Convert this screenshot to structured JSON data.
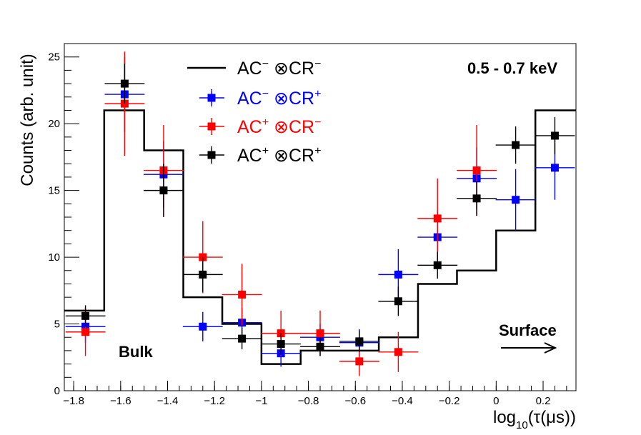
{
  "chart_data": {
    "type": "scatter",
    "title": "0.5 - 0.7 keV",
    "xlabel": "log",
    "xlabel_sub": "10",
    "xlabel_arg": "(τ(μs))",
    "ylabel": "Counts (arb. unit)",
    "xlim": [
      -1.84,
      0.34
    ],
    "ylim": [
      0,
      26
    ],
    "x_ticks": [
      -1.8,
      -1.6,
      -1.4,
      -1.2,
      -1,
      -0.8,
      -0.6,
      -0.4,
      -0.2,
      0,
      0.2
    ],
    "x_tick_labels": [
      "−1.8",
      "−1.6",
      "−1.4",
      "−1.2",
      "−1",
      "−0.8",
      "−0.6",
      "−0.4",
      "−0.2",
      "0",
      "0.2"
    ],
    "y_ticks": [
      0,
      5,
      10,
      15,
      20,
      25
    ],
    "y_tick_labels": [
      "0",
      "5",
      "10",
      "15",
      "20",
      "25"
    ],
    "bin_edges": [
      -1.84,
      -1.67,
      -1.5,
      -1.333,
      -1.167,
      -1.0,
      -0.833,
      -0.667,
      -0.5,
      -0.333,
      -0.167,
      0.0,
      0.167,
      0.34
    ],
    "x_centers": [
      -1.75,
      -1.583,
      -1.417,
      -1.25,
      -1.083,
      -0.917,
      -0.75,
      -0.583,
      -0.417,
      -0.25,
      -0.083,
      0.083,
      0.25
    ],
    "histogram": {
      "name_base": "AC",
      "sup1": "−",
      "name_mid": "CR",
      "sup2": "−",
      "color": "#000000",
      "values": [
        6,
        21,
        18,
        7,
        5,
        2,
        3,
        3,
        4,
        8,
        9,
        12,
        21
      ]
    },
    "series": [
      {
        "name_base": "AC",
        "sup1": "−",
        "name_mid": "CR",
        "sup2": "+",
        "color": "#0000ff",
        "values": [
          4.8,
          22.2,
          16.2,
          4.8,
          5.1,
          2.8,
          4.0,
          3.6,
          8.7,
          11.5,
          15.9,
          14.3,
          16.7
        ],
        "errors": [
          1.2,
          2.8,
          2.5,
          1.1,
          1.1,
          1.0,
          1.0,
          1.0,
          1.9,
          2.0,
          2.3,
          2.3,
          2.4
        ]
      },
      {
        "name_base": "AC",
        "sup1": "+",
        "name_mid": "CR",
        "sup2": "−",
        "color": "#ff0000",
        "values": [
          4.4,
          21.5,
          16.5,
          10.0,
          7.2,
          4.3,
          4.3,
          2.2,
          2.9,
          12.9,
          16.5,
          null,
          null
        ],
        "errors": [
          1.8,
          3.9,
          3.4,
          2.7,
          2.3,
          1.7,
          1.7,
          1.1,
          1.5,
          3.0,
          3.4,
          null,
          null
        ]
      },
      {
        "name_base": "AC",
        "sup1": "+",
        "name_mid": "CR",
        "sup2": "+",
        "color": "#000000",
        "values": [
          5.6,
          23.0,
          15.0,
          8.7,
          3.9,
          3.5,
          3.3,
          3.7,
          6.7,
          9.4,
          14.4,
          18.4,
          19.1
        ],
        "errors": [
          0.8,
          1.5,
          2.0,
          1.3,
          0.8,
          0.8,
          0.7,
          0.8,
          1.1,
          1.0,
          1.3,
          1.4,
          1.4
        ]
      }
    ],
    "annotations": {
      "bulk": "Bulk",
      "surface": "Surface"
    },
    "legend_position": "top-center",
    "grid": false
  }
}
